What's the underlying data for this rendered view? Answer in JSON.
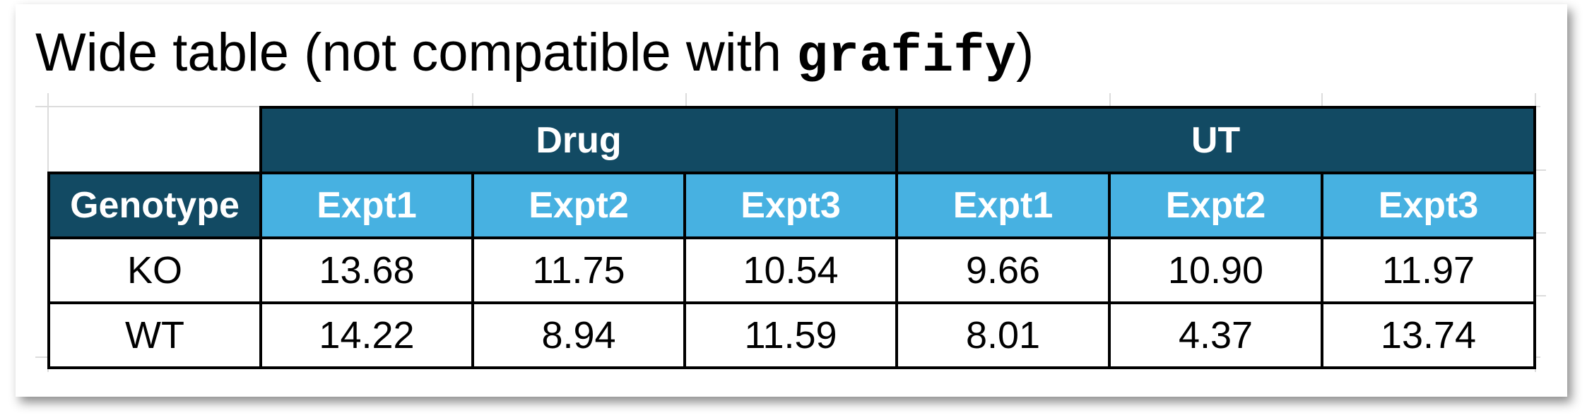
{
  "title": {
    "prefix": "Wide table (not compatible with ",
    "code": "grafify",
    "suffix": ")"
  },
  "colors": {
    "group_header_bg": "#124a63",
    "sub_header_bg": "#47b1e1",
    "header_text": "#ffffff",
    "cell_bg": "#ffffff",
    "border": "#000000"
  },
  "table": {
    "groups": [
      "Drug",
      "UT"
    ],
    "row_header": "Genotype",
    "sub_headers": [
      "Expt1",
      "Expt2",
      "Expt3",
      "Expt1",
      "Expt2",
      "Expt3"
    ],
    "rows": [
      {
        "label": "KO",
        "values": [
          "13.68",
          "11.75",
          "10.54",
          "9.66",
          "10.90",
          "11.97"
        ]
      },
      {
        "label": "WT",
        "values": [
          "14.22",
          "8.94",
          "11.59",
          "8.01",
          "4.37",
          "13.74"
        ]
      }
    ]
  }
}
